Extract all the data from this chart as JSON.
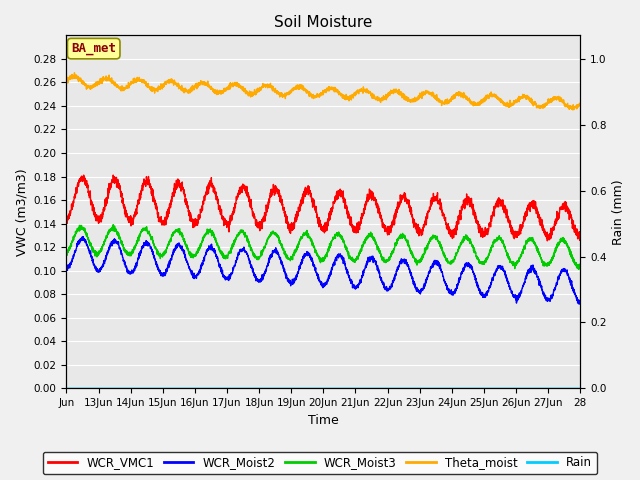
{
  "title": "Soil Moisture",
  "xlabel": "Time",
  "ylabel_left": "VWC (m3/m3)",
  "ylabel_right": "Rain (mm)",
  "xlim_start": 12,
  "xlim_end": 28,
  "ylim_left": [
    0.0,
    0.3
  ],
  "ylim_right": [
    0.0,
    1.071428
  ],
  "xtick_labels": [
    "Jun",
    "13Jun",
    "14Jun",
    "15Jun",
    "16Jun",
    "17Jun",
    "18Jun",
    "19Jun",
    "20Jun",
    "21Jun",
    "22Jun",
    "23Jun",
    "24Jun",
    "25Jun",
    "26Jun",
    "27Jun",
    "28"
  ],
  "xtick_positions": [
    12,
    13,
    14,
    15,
    16,
    17,
    18,
    19,
    20,
    21,
    22,
    23,
    24,
    25,
    26,
    27,
    28
  ],
  "ytick_left": [
    0.0,
    0.02,
    0.04,
    0.06,
    0.08,
    0.1,
    0.12,
    0.14,
    0.16,
    0.18,
    0.2,
    0.22,
    0.24,
    0.26,
    0.28
  ],
  "ytick_right": [
    0.0,
    0.2,
    0.4,
    0.6,
    0.8,
    1.0
  ],
  "legend_labels": [
    "WCR_VMC1",
    "WCR_Moist2",
    "WCR_Moist3",
    "Theta_moist",
    "Rain"
  ],
  "legend_colors": [
    "#ff0000",
    "#0000ff",
    "#00cc00",
    "#ffaa00",
    "#00ccff"
  ],
  "line_width": 1.0,
  "annotation_text": "BA_met",
  "annotation_color": "#8b0000",
  "annotation_bg": "#ffff99",
  "fig_bg": "#f0f0f0",
  "plot_bg": "#e8e8e8",
  "grid_color": "#ffffff"
}
